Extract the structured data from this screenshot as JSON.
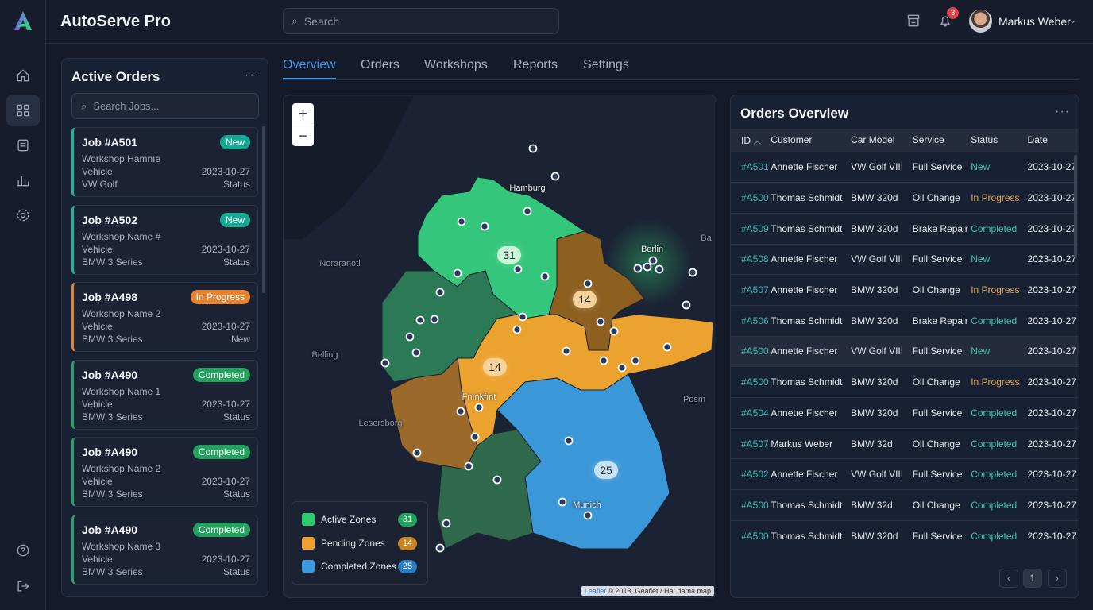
{
  "app": {
    "title": "AutoServe Pro"
  },
  "header": {
    "search_placeholder": "Search",
    "notifications": "3",
    "user": "Markus Weber"
  },
  "sidebar": {
    "items": [
      {
        "icon": "home-icon"
      },
      {
        "icon": "dashboard-icon"
      },
      {
        "icon": "orders-icon"
      },
      {
        "icon": "reports-icon"
      },
      {
        "icon": "settings-icon"
      },
      {
        "icon": "help-icon"
      },
      {
        "icon": "logout-icon"
      }
    ]
  },
  "tabs": [
    "Overview",
    "Orders",
    "Workshops",
    "Reports",
    "Settings"
  ],
  "active_orders": {
    "title": "Active Orders",
    "search_placeholder": "Search Jobs...",
    "cards": [
      {
        "job": "Job #A501",
        "status": "New",
        "workshop": "Workshop Hamnıe",
        "vehicle_label": "Vehicle",
        "date": "2023-10-27",
        "model": "VW Golf",
        "right": "Status",
        "kind": "new"
      },
      {
        "job": "Job #A502",
        "status": "New",
        "workshop": "Workshop Name #",
        "vehicle_label": "Vehicle",
        "date": "2023-10-27",
        "model": "BMW 3 Series",
        "right": "Status",
        "kind": "new"
      },
      {
        "job": "Job #A498",
        "status": "In Progress",
        "workshop": "Workshop Name 2",
        "vehicle_label": "Vehicle",
        "date": "2023-10-27",
        "model": "BMW 3 Series",
        "right": "New",
        "kind": "prog"
      },
      {
        "job": "Job #A490",
        "status": "Completed",
        "workshop": "Workshop Name 1",
        "vehicle_label": "Vehicle",
        "date": "2023-10-27",
        "model": "BMW 3 Series",
        "right": "Status",
        "kind": "done"
      },
      {
        "job": "Job #A490",
        "status": "Completed",
        "workshop": "Workshop Name 2",
        "vehicle_label": "Vehicle",
        "date": "2023-10-27",
        "model": "BMW 3 Series",
        "right": "Status",
        "kind": "done"
      },
      {
        "job": "Job #A490",
        "status": "Completed",
        "workshop": "Workshop Name 3",
        "vehicle_label": "Vehicle",
        "date": "2023-10-27",
        "model": "BMW 3 Series",
        "right": "Status",
        "kind": "done"
      }
    ]
  },
  "map": {
    "zoom_in": "+",
    "zoom_out": "−",
    "cities": [
      "Hamburg",
      "Berlin",
      "Fnınkfınt",
      "Munich",
      "Noraṛanoti",
      "Belliug",
      "Lesersborg",
      "Posm",
      "Ba"
    ],
    "clusters": [
      "31",
      "14",
      "14",
      "25"
    ],
    "legend": [
      {
        "label": "Active Zones",
        "count": "31",
        "color": "#2ecc71",
        "badge": "#23a25e"
      },
      {
        "label": "Pending Zones",
        "count": "14",
        "color": "#f0a030",
        "badge": "#c98524"
      },
      {
        "label": "Completed Zones",
        "count": "25",
        "color": "#3a9ae0",
        "badge": "#2b7fc0"
      }
    ],
    "attribution_link": "Leaflet",
    "attribution": " © 2013, Geaflet:/ Ha: dama map"
  },
  "orders": {
    "title": "Orders Overview",
    "columns": [
      "ID",
      "Customer",
      "Car Model",
      "Service",
      "Status",
      "Date"
    ],
    "rows": [
      [
        "#A501",
        "Annette Fischer",
        "VW Golf VIII",
        "Full Service",
        "New",
        "2023-10-27"
      ],
      [
        "#A500",
        "Thomas Schmidt",
        "BMW 320d",
        "Oil Change",
        "In Progress",
        "2023-10-27"
      ],
      [
        "#A509",
        "Thomas Schmidt",
        "BMW 320d",
        "Brake Repair",
        "Completed",
        "2023-10-27"
      ],
      [
        "#A508",
        "Annette Fischer",
        "VW Golf VIII",
        "Full Service",
        "New",
        "2023-10-27"
      ],
      [
        "#A507",
        "Annette Fischer",
        "BMW 320d",
        "Oil Change",
        "In Progress",
        "2023-10-27"
      ],
      [
        "#A506",
        "Thomas Schmidt",
        "BMW 320d",
        "Brake Repair",
        "Completed",
        "2023-10-27"
      ],
      [
        "#A500",
        "Annette Fischer",
        "VW Golf VIII",
        "Full Service",
        "New",
        "2023-10-27"
      ],
      [
        "#A500",
        "Thomas Schmidt",
        "BMW 320d",
        "Oil Change",
        "In Progress",
        "2023-10-27"
      ],
      [
        "#A504",
        "Annetıe Fischer",
        "BMW 320d",
        "Full Service",
        "Completed",
        "2023-10-27"
      ],
      [
        "#A507",
        "Markus Weber",
        "BMW 32d",
        "Oil Change",
        "Completed",
        "2023-10-27"
      ],
      [
        "#A502",
        "Annette Fischer",
        "VW Golf VIII",
        "Full Service",
        "Completed",
        "2023-10-27"
      ],
      [
        "#A500",
        "Thomas Schmidt",
        "BMW 32d",
        "Oil Change",
        "Completed",
        "2023-10-27"
      ],
      [
        "#A500",
        "Thomas Schmidt",
        "BMW 320d",
        "Full Service",
        "Completed",
        "2023-10-27"
      ]
    ],
    "page": "1",
    "highlighted_row": 6
  }
}
